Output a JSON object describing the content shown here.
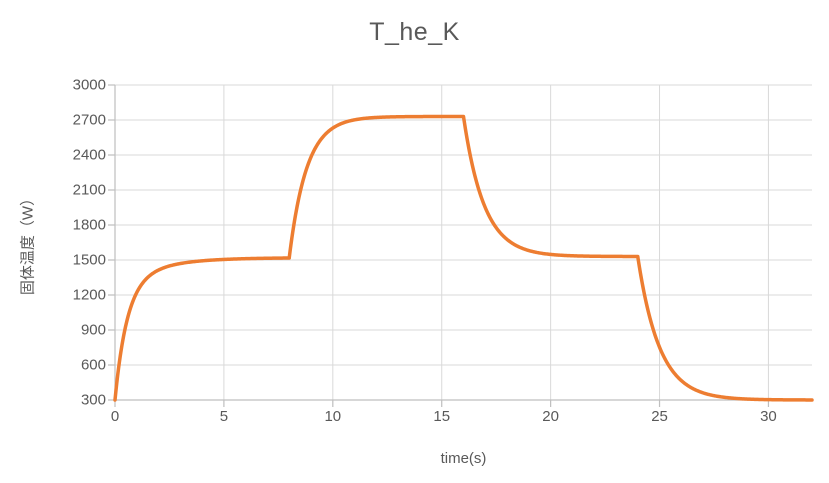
{
  "chart_data": {
    "type": "line",
    "title": "T_he_K",
    "xlabel": "time(s)",
    "ylabel": "固体温度（W）",
    "xlim": [
      0,
      32
    ],
    "ylim": [
      300,
      3000
    ],
    "x_ticks": [
      0,
      5,
      10,
      15,
      20,
      25,
      30
    ],
    "y_ticks": [
      300,
      600,
      900,
      1200,
      1500,
      1800,
      2100,
      2400,
      2700,
      3000
    ],
    "grid": true,
    "legend": "none",
    "colors": {
      "line": "#ED7D31",
      "gridline": "#D9D9D9",
      "axis": "#BFBFBF",
      "text": "#595959"
    },
    "series_name": "T_he_K",
    "key_points": [
      {
        "t": 0,
        "value": 300,
        "note": "start at ambient"
      },
      {
        "t": 8,
        "value": 1520,
        "note": "first plateau, step input at t=8"
      },
      {
        "t": 16,
        "value": 2730,
        "note": "second plateau, step down at t=16"
      },
      {
        "t": 24,
        "value": 1530,
        "note": "third plateau, step down at t=24"
      },
      {
        "t": 32,
        "value": 300,
        "note": "back to ambient"
      }
    ],
    "segments": [
      {
        "t_start": 0,
        "t_end": 8,
        "start": 300,
        "asymptote": 1520,
        "tau": 0.55,
        "tau2": 1.8,
        "w2": 0.2
      },
      {
        "t_start": 8,
        "t_end": 16,
        "start": 1520,
        "asymptote": 2730,
        "tau": 0.8
      },
      {
        "t_start": 16,
        "t_end": 24,
        "start": 2730,
        "asymptote": 1530,
        "tau": 0.95
      },
      {
        "t_start": 24,
        "t_end": 32,
        "start": 1530,
        "asymptote": 300,
        "tau": 1.0
      }
    ]
  }
}
